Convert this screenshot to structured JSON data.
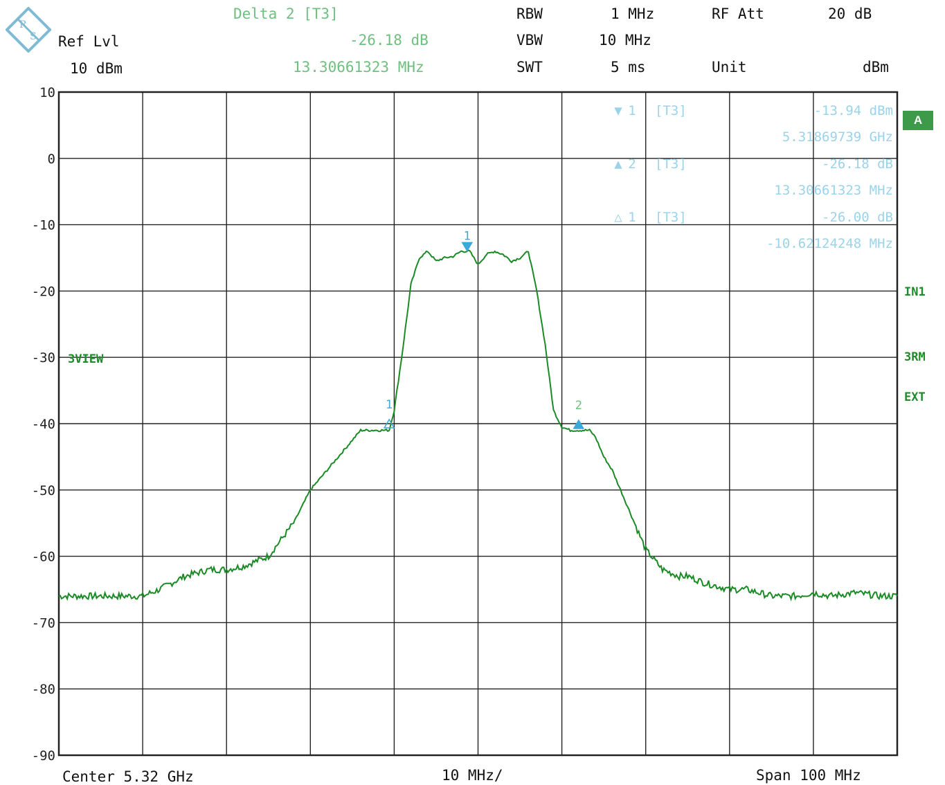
{
  "header": {
    "delta_label": "Delta 2 [T3]",
    "delta_value": "-26.18 dB",
    "delta_freq": "13.30661323 MHz",
    "ref_lvl_label": "Ref Lvl",
    "ref_lvl_value": "10 dBm",
    "rbw_label": "RBW",
    "rbw_value": "1 MHz",
    "vbw_label": "VBW",
    "vbw_value": "10 MHz",
    "swt_label": "SWT",
    "swt_value": "5 ms",
    "rfatt_label": "RF Att",
    "rfatt_value": "20 dB",
    "unit_label": "Unit",
    "unit_value": "dBm"
  },
  "markers_table": [
    {
      "symbol": "▼",
      "num": "1",
      "trace": "[T3]",
      "level": "-13.94 dBm",
      "freq": "5.31869739 GHz"
    },
    {
      "symbol": "▲",
      "num": "2",
      "trace": "[T3]",
      "level": "-26.18 dB",
      "freq": "13.30661323 MHz"
    },
    {
      "symbol": "△",
      "num": "1",
      "trace": "[T3]",
      "level": "-26.00 dB",
      "freq": "-10.62124248 MHz"
    }
  ],
  "side_labels": {
    "a_badge": "A",
    "in1": "IN1",
    "rm": "3RM",
    "ext": "EXT",
    "view": "3VIEW"
  },
  "footer": {
    "center": "Center 5.32 GHz",
    "div": "10 MHz/",
    "span": "Span 100 MHz"
  },
  "colors": {
    "trace": "#1a8a25",
    "marker": "#3aa8d8",
    "grid": "#222222"
  },
  "chart_data": {
    "type": "line",
    "xlabel": "",
    "ylabel": "",
    "xlim": [
      -50,
      50
    ],
    "ylim": [
      -90,
      10
    ],
    "x_unit": "MHz offset from center",
    "y_unit": "dBm",
    "grid": true,
    "yticks": [
      "10",
      "0",
      "-10",
      "-20",
      "-30",
      "-40",
      "-50",
      "-60",
      "-70",
      "-80",
      "-90"
    ],
    "series": [
      {
        "x": [
          -50,
          -46,
          -44,
          -40,
          -38,
          -35,
          -32,
          -30,
          -28,
          -25,
          -22,
          -20,
          -18,
          -16,
          -14,
          -12,
          -10.6,
          -10,
          -9,
          -8,
          -7,
          -6,
          -5,
          -4,
          -3,
          -2,
          -1,
          0,
          1,
          2,
          3,
          4,
          5,
          6,
          7,
          8,
          9,
          10,
          11,
          12,
          13.3,
          14,
          15,
          16,
          17,
          18,
          19,
          20,
          22,
          24,
          25,
          27,
          30,
          32,
          35,
          38,
          40,
          42,
          45,
          48,
          50
        ],
        "y": [
          -66,
          -66,
          -66,
          -66,
          -65,
          -63,
          -62,
          -62,
          -61.5,
          -60,
          -55,
          -50,
          -47,
          -44,
          -41,
          -41,
          -41,
          -38,
          -29,
          -19,
          -15,
          -14,
          -15.5,
          -15,
          -14.8,
          -14,
          -14,
          -16,
          -14.5,
          -14,
          -14.5,
          -15.5,
          -15,
          -14,
          -20,
          -28,
          -38,
          -40.5,
          -41,
          -41,
          -41,
          -42,
          -45,
          -47,
          -50,
          -53,
          -56,
          -59,
          -62,
          -63,
          -63,
          -64,
          -65,
          -65,
          -66,
          -66,
          -65.5,
          -66,
          -65.5,
          -66,
          -66
        ]
      }
    ],
    "markers": [
      {
        "label": "1",
        "x": -1.3,
        "y": -13.94,
        "style": "filled-down"
      },
      {
        "label": "2",
        "x": 12.0,
        "y": -40.1,
        "style": "filled-up"
      },
      {
        "label": "1",
        "x": -10.6,
        "y": -40.0,
        "style": "hollow-up"
      }
    ]
  }
}
